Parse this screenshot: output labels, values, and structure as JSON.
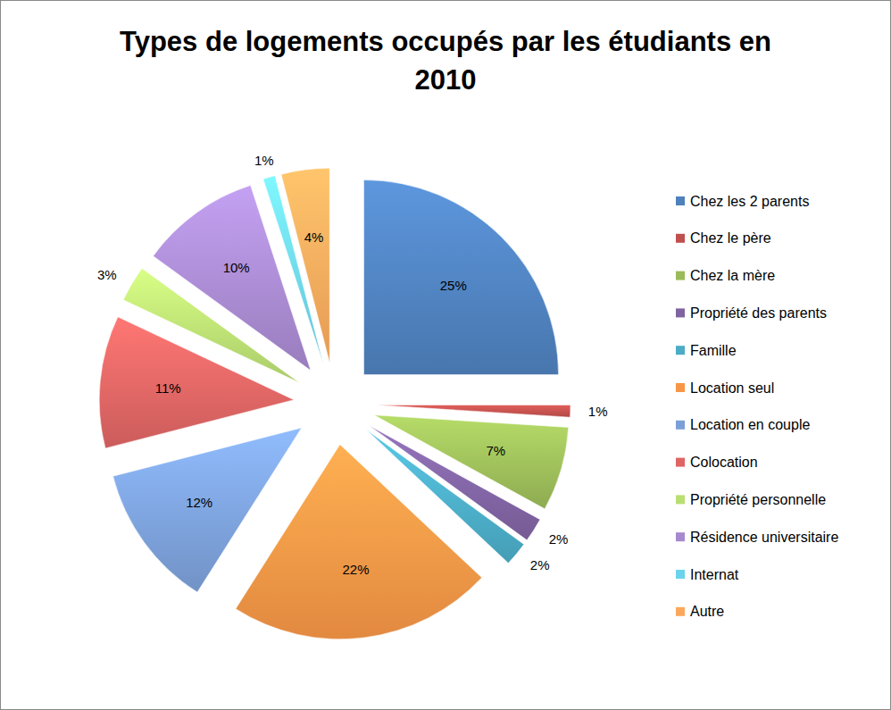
{
  "chart_data": {
    "type": "pie",
    "title": "Types de logements occupés par les étudiants en 2010",
    "categories": [
      "Chez les 2 parents",
      "Chez le père",
      "Chez la mère",
      "Propriété des parents",
      "Famille",
      "Location seul",
      "Location en couple",
      "Colocation",
      "Propriété personnelle",
      "Résidence universitaire",
      "Internat",
      "Autre"
    ],
    "values": [
      25,
      1,
      7,
      2,
      2,
      22,
      12,
      11,
      3,
      10,
      1,
      4
    ],
    "value_labels": [
      "25%",
      "1%",
      "7%",
      "2%",
      "2%",
      "22%",
      "12%",
      "11%",
      "3%",
      "10%",
      "1%",
      "4%"
    ],
    "colors": [
      "#4F81BD",
      "#C0504D",
      "#9BBB59",
      "#8064A2",
      "#4BACC6",
      "#F79646",
      "#7BA0D8",
      "#DE6563",
      "#B9DE72",
      "#A789CF",
      "#6CD3EC",
      "#FBA85C"
    ],
    "data_labels": true,
    "legend": "right"
  }
}
